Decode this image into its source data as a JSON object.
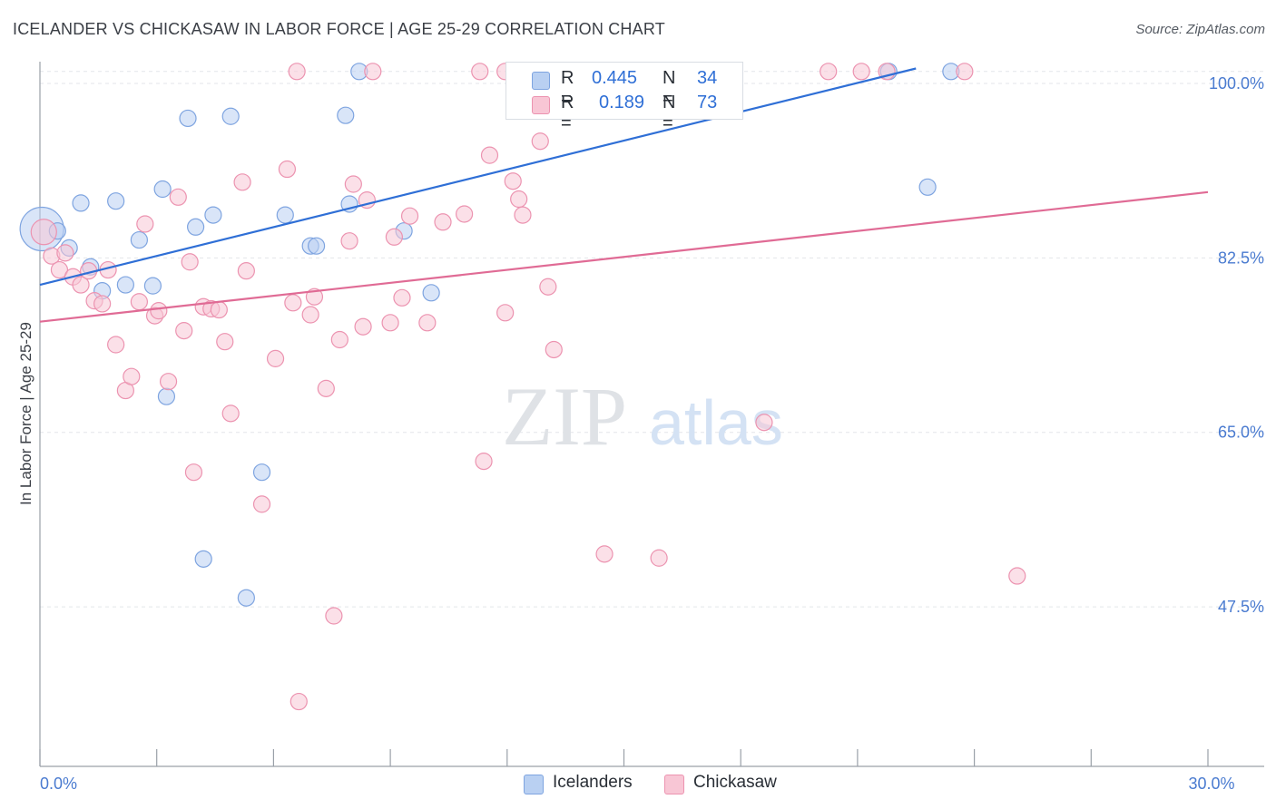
{
  "title": "ICELANDER VS CHICKASAW IN LABOR FORCE | AGE 25-29 CORRELATION CHART",
  "source": "Source: ZipAtlas.com",
  "watermark": {
    "zip": "ZIP",
    "atlas": "atlas"
  },
  "legend": {
    "r_label": "R =",
    "n_label": "N =",
    "rows": [
      {
        "name": "Icelanders",
        "r": "0.445",
        "n": "34"
      },
      {
        "name": "Chickasaw",
        "r": "0.189",
        "n": "73"
      }
    ]
  },
  "colors": {
    "icelanders_fill": "#b9d0f2",
    "icelanders_stroke": "#7ea4e0",
    "icelanders_line": "#2f6fd6",
    "chickasaw_fill": "#f8c6d5",
    "chickasaw_stroke": "#ec93b0",
    "chickasaw_line": "#e06b95",
    "tick_text": "#4a7bd0",
    "grid": "#e3e6ea"
  },
  "chart_data": {
    "type": "scatter",
    "title": "ICELANDER VS CHICKASAW IN LABOR FORCE | AGE 25-29 CORRELATION CHART",
    "xlabel": "",
    "ylabel": "In Labor Force | Age 25-29",
    "xlim": [
      0,
      30
    ],
    "ylim": [
      31.5,
      102
    ],
    "x_tick_labels": [
      {
        "value": 0,
        "label": "0.0%"
      },
      {
        "value": 30,
        "label": "30.0%"
      }
    ],
    "y_tick_labels": [
      {
        "value": 100,
        "label": "100.0%"
      },
      {
        "value": 82.5,
        "label": "82.5%"
      },
      {
        "value": 65,
        "label": "65.0%"
      },
      {
        "value": 47.5,
        "label": "47.5%"
      }
    ],
    "grid": true,
    "legend_position": "top-center",
    "series": [
      {
        "name": "Icelanders",
        "trend": {
          "x": [
            0,
            22.5
          ],
          "y": [
            79.8,
            101.5
          ]
        },
        "points": [
          [
            0.05,
            85.4,
            24
          ],
          [
            0.45,
            85.2,
            9
          ],
          [
            0.75,
            83.5,
            9
          ],
          [
            1.05,
            88.0,
            9
          ],
          [
            1.3,
            81.6,
            9
          ],
          [
            1.6,
            79.2,
            9
          ],
          [
            1.95,
            88.2,
            9
          ],
          [
            2.2,
            79.8,
            9
          ],
          [
            2.55,
            84.3,
            9
          ],
          [
            2.9,
            79.7,
            9
          ],
          [
            3.15,
            89.4,
            9
          ],
          [
            3.25,
            68.6,
            9
          ],
          [
            3.8,
            96.5,
            9
          ],
          [
            4.0,
            85.6,
            9
          ],
          [
            4.2,
            52.3,
            9
          ],
          [
            4.45,
            86.8,
            9
          ],
          [
            4.9,
            96.7,
            9
          ],
          [
            5.3,
            48.4,
            9
          ],
          [
            5.7,
            61.0,
            9
          ],
          [
            6.3,
            86.8,
            9
          ],
          [
            6.95,
            83.7,
            9
          ],
          [
            7.1,
            83.7,
            9
          ],
          [
            7.85,
            96.8,
            9
          ],
          [
            7.95,
            87.9,
            9
          ],
          [
            8.2,
            101.2,
            9
          ],
          [
            9.35,
            85.2,
            9
          ],
          [
            10.05,
            79.0,
            9
          ],
          [
            12.8,
            101.3,
            9
          ],
          [
            14.2,
            101.2,
            9
          ],
          [
            14.9,
            101.3,
            9
          ],
          [
            17.6,
            101.3,
            9
          ],
          [
            22.8,
            89.6,
            9
          ],
          [
            23.4,
            101.2,
            9
          ],
          [
            21.8,
            101.2,
            9
          ]
        ]
      },
      {
        "name": "Chickasaw",
        "trend": {
          "x": [
            0,
            30
          ],
          "y": [
            76.1,
            89.1
          ]
        },
        "points": [
          [
            0.1,
            85.1,
            14
          ],
          [
            0.3,
            82.7,
            9
          ],
          [
            0.5,
            81.3,
            9
          ],
          [
            0.65,
            83.0,
            9
          ],
          [
            0.85,
            80.6,
            9
          ],
          [
            1.05,
            79.8,
            9
          ],
          [
            1.25,
            81.2,
            9
          ],
          [
            1.4,
            78.2,
            9
          ],
          [
            1.6,
            77.9,
            9
          ],
          [
            1.75,
            81.3,
            9
          ],
          [
            1.95,
            73.8,
            9
          ],
          [
            2.2,
            69.2,
            9
          ],
          [
            2.35,
            70.6,
            9
          ],
          [
            2.55,
            78.1,
            9
          ],
          [
            2.7,
            85.9,
            9
          ],
          [
            2.95,
            76.7,
            9
          ],
          [
            3.05,
            77.2,
            9
          ],
          [
            3.3,
            70.1,
            9
          ],
          [
            3.55,
            88.6,
            9
          ],
          [
            3.7,
            75.2,
            9
          ],
          [
            3.85,
            82.1,
            9
          ],
          [
            3.95,
            61.0,
            9
          ],
          [
            4.2,
            77.6,
            9
          ],
          [
            4.4,
            77.4,
            9
          ],
          [
            4.6,
            77.3,
            9
          ],
          [
            4.75,
            74.1,
            9
          ],
          [
            4.9,
            66.9,
            9
          ],
          [
            5.2,
            90.1,
            9
          ],
          [
            5.3,
            81.2,
            9
          ],
          [
            5.7,
            57.8,
            9
          ],
          [
            6.05,
            72.4,
            9
          ],
          [
            6.35,
            91.4,
            9
          ],
          [
            6.5,
            78.0,
            9
          ],
          [
            6.6,
            101.2,
            9
          ],
          [
            6.65,
            38.0,
            9
          ],
          [
            6.95,
            76.8,
            9
          ],
          [
            7.05,
            78.6,
            9
          ],
          [
            7.35,
            69.4,
            9
          ],
          [
            7.55,
            46.6,
            9
          ],
          [
            7.7,
            74.3,
            9
          ],
          [
            7.95,
            84.2,
            9
          ],
          [
            8.05,
            89.9,
            9
          ],
          [
            8.3,
            75.6,
            9
          ],
          [
            8.4,
            88.3,
            9
          ],
          [
            8.55,
            101.2,
            9
          ],
          [
            9.0,
            76.0,
            9
          ],
          [
            9.1,
            84.6,
            9
          ],
          [
            9.3,
            78.5,
            9
          ],
          [
            9.5,
            86.7,
            9
          ],
          [
            9.95,
            76.0,
            9
          ],
          [
            10.35,
            86.1,
            9
          ],
          [
            10.9,
            86.9,
            9
          ],
          [
            11.4,
            62.1,
            9
          ],
          [
            11.55,
            92.8,
            9
          ],
          [
            11.95,
            77.0,
            9
          ],
          [
            11.95,
            101.2,
            9
          ],
          [
            12.15,
            90.2,
            9
          ],
          [
            12.3,
            88.4,
            9
          ],
          [
            12.4,
            86.8,
            9
          ],
          [
            12.85,
            94.2,
            9
          ],
          [
            13.05,
            79.6,
            9
          ],
          [
            13.2,
            73.3,
            9
          ],
          [
            14.5,
            52.8,
            9
          ],
          [
            15.1,
            101.2,
            9
          ],
          [
            15.9,
            52.4,
            9
          ],
          [
            16.2,
            101.2,
            9
          ],
          [
            18.6,
            66.0,
            9
          ],
          [
            20.25,
            101.2,
            9
          ],
          [
            21.1,
            101.2,
            9
          ],
          [
            21.75,
            101.2,
            9
          ],
          [
            23.75,
            101.2,
            9
          ],
          [
            25.1,
            50.6,
            9
          ],
          [
            11.3,
            101.2,
            9
          ]
        ]
      }
    ]
  }
}
